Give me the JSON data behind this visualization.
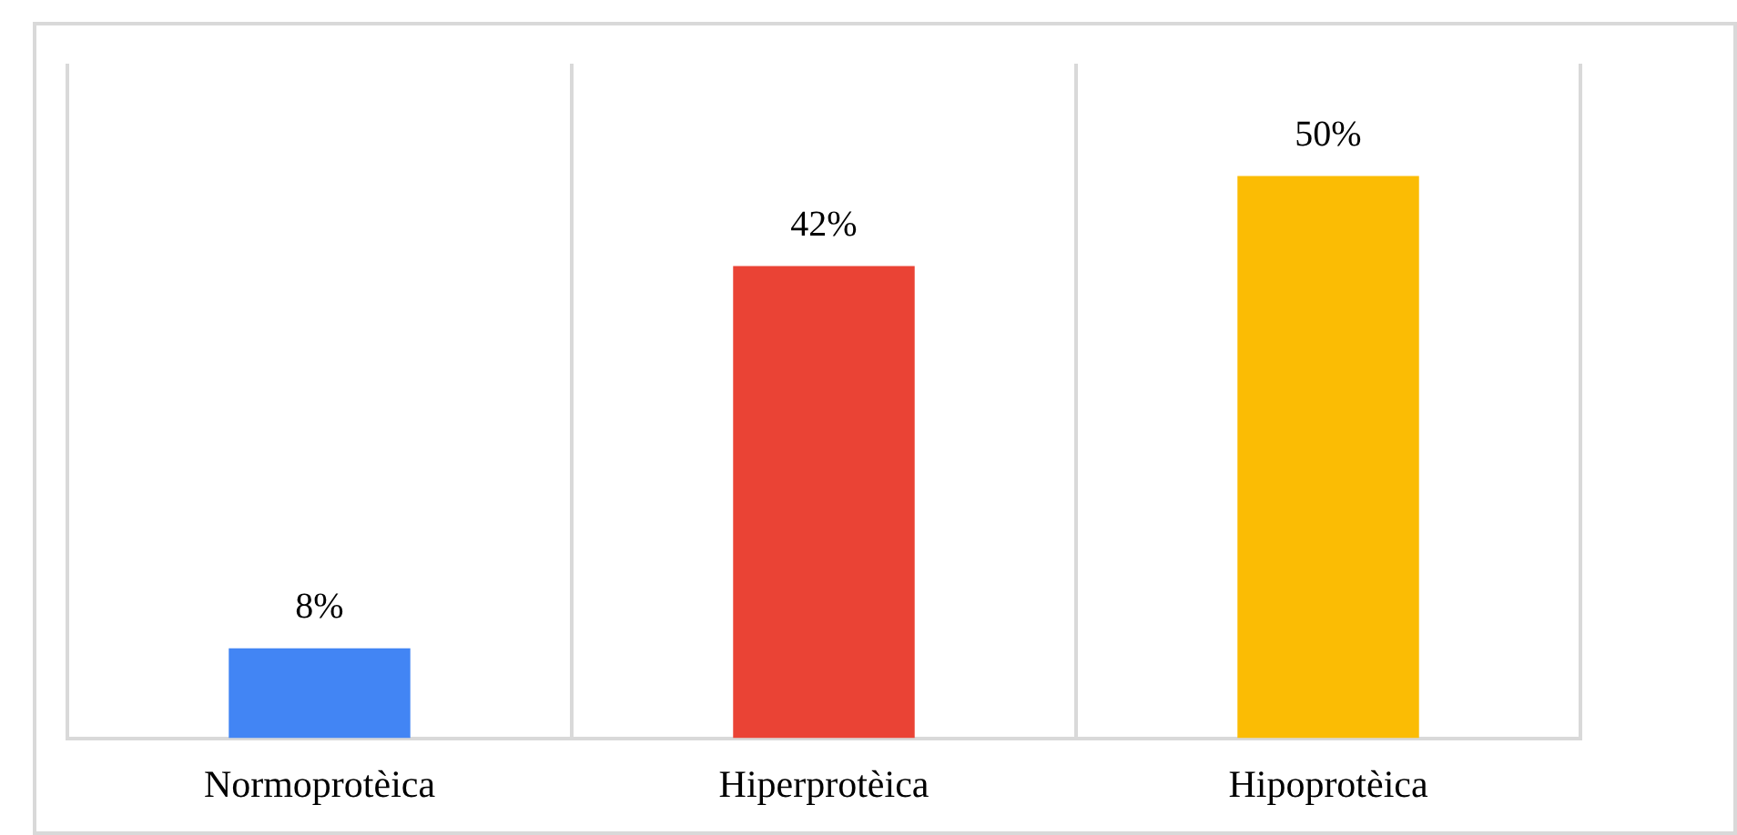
{
  "chart_data": {
    "type": "bar",
    "categories": [
      "Normoprotèica",
      "Hiperprotèica",
      "Hipoprotèica"
    ],
    "values": [
      8,
      42,
      50
    ],
    "colors": [
      "#4285f4",
      "#ea4335",
      "#fbbc04"
    ],
    "value_labels": [
      "8%",
      "42%",
      "50%"
    ],
    "ylim": [
      0,
      60
    ],
    "tick_labels": "x",
    "grid": "x",
    "legend": false
  }
}
